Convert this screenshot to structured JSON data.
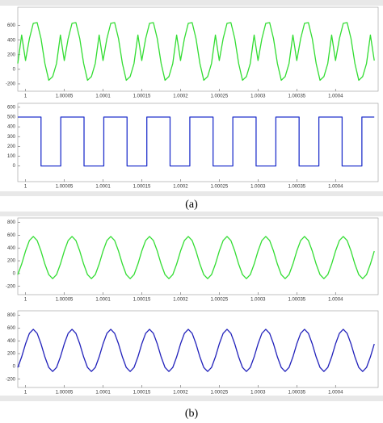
{
  "captions": [
    "(a)",
    "(b)"
  ],
  "chart_data": [
    {
      "type": "line",
      "color": "#33dd33",
      "xlim": [
        0.99999,
        1.000455
      ],
      "ylim": [
        -300,
        850
      ],
      "yticks": [
        -200,
        0,
        200,
        400,
        600
      ],
      "xticks": [
        1,
        1.00005,
        1.0001,
        1.00015,
        1.0002,
        1.00025,
        1.0003,
        1.00035,
        1.0004
      ],
      "x": [
        0.99999,
        0.999995,
        1,
        1.000005,
        1.00001,
        1.000015,
        1.00002,
        1.000025,
        1.00003,
        1.000035,
        1.00004,
        1.000045,
        1.00005,
        1.000055,
        1.00006,
        1.000065,
        1.00007,
        1.000075,
        1.00008,
        1.000085,
        1.00009,
        1.000095,
        1.0001,
        1.000105,
        1.00011,
        1.000115,
        1.00012,
        1.000125,
        1.00013,
        1.000135,
        1.00014,
        1.000145,
        1.00015,
        1.000155,
        1.00016,
        1.000165,
        1.00017,
        1.000175,
        1.00018,
        1.000185,
        1.00019,
        1.000195,
        1.0002,
        1.000205,
        1.00021,
        1.000215,
        1.00022,
        1.000225,
        1.00023,
        1.000235,
        1.00024,
        1.000245,
        1.00025,
        1.000255,
        1.00026,
        1.000265,
        1.00027,
        1.000275,
        1.00028,
        1.000285,
        1.00029,
        1.000295,
        1.0003,
        1.000305,
        1.00031,
        1.000315,
        1.00032,
        1.000325,
        1.00033,
        1.000335,
        1.00034,
        1.000345,
        1.00035,
        1.000355,
        1.00036,
        1.000365,
        1.00037,
        1.000375,
        1.00038,
        1.000385,
        1.00039,
        1.000395,
        1.0004,
        1.000405,
        1.00041,
        1.000415,
        1.00042,
        1.000425,
        1.00043,
        1.000435,
        1.00044,
        1.000445,
        1.00045
      ],
      "values": [
        80,
        470,
        120,
        420,
        630,
        640,
        420,
        80,
        -150,
        -100,
        80,
        470,
        120,
        420,
        630,
        640,
        420,
        80,
        -150,
        -100,
        80,
        470,
        120,
        420,
        630,
        640,
        420,
        80,
        -150,
        -100,
        80,
        470,
        120,
        420,
        630,
        640,
        420,
        80,
        -150,
        -100,
        80,
        470,
        120,
        420,
        630,
        640,
        420,
        80,
        -150,
        -100,
        80,
        470,
        120,
        420,
        630,
        640,
        420,
        80,
        -150,
        -100,
        80,
        470,
        120,
        420,
        630,
        640,
        420,
        80,
        -150,
        -100,
        80,
        470,
        120,
        420,
        630,
        640,
        420,
        80,
        -150,
        -100,
        80,
        470,
        120,
        420,
        630,
        640,
        420,
        80,
        -150,
        -100,
        80,
        470,
        120
      ]
    },
    {
      "type": "line",
      "color": "#2233cc",
      "xlim": [
        0.99999,
        1.000455
      ],
      "ylim": [
        -160,
        640
      ],
      "yticks": [
        0,
        100,
        200,
        300,
        400,
        500,
        600
      ],
      "xticks": [
        1,
        1.00005,
        1.0001,
        1.00015,
        1.0002,
        1.00025,
        1.0003,
        1.00035,
        1.0004
      ],
      "x": [
        0.99999,
        1.00002,
        1.00002,
        1.0000455,
        1.0000455,
        1.0000755,
        1.0000755,
        1.000101,
        1.000101,
        1.000131,
        1.000131,
        1.0001565,
        1.0001565,
        1.0001865,
        1.0001865,
        1.000212,
        1.000212,
        1.000242,
        1.000242,
        1.0002675,
        1.0002675,
        1.0002975,
        1.0002975,
        1.000323,
        1.000323,
        1.000353,
        1.000353,
        1.0003785,
        1.0003785,
        1.0004085,
        1.0004085,
        1.000434,
        1.000434,
        1.00045
      ],
      "values": [
        500,
        500,
        0,
        0,
        500,
        500,
        0,
        0,
        500,
        500,
        0,
        0,
        500,
        500,
        0,
        0,
        500,
        500,
        0,
        0,
        500,
        500,
        0,
        0,
        500,
        500,
        0,
        0,
        500,
        500,
        0,
        0,
        500,
        500
      ]
    },
    {
      "type": "line",
      "color": "#33dd33",
      "xlim": [
        0.99999,
        1.000455
      ],
      "ylim": [
        -330,
        870
      ],
      "yticks": [
        -200,
        0,
        200,
        400,
        600,
        800
      ],
      "xticks": [
        1,
        1.00005,
        1.0001,
        1.00015,
        1.0002,
        1.00025,
        1.0003,
        1.00035,
        1.0004
      ],
      "x": [
        0.99999,
        0.999995,
        1,
        1.000005,
        1.00001,
        1.000015,
        1.00002,
        1.000025,
        1.00003,
        1.000035,
        1.00004,
        1.000045,
        1.00005,
        1.000055,
        1.00006,
        1.000065,
        1.00007,
        1.000075,
        1.00008,
        1.000085,
        1.00009,
        1.000095,
        1.0001,
        1.000105,
        1.00011,
        1.000115,
        1.00012,
        1.000125,
        1.00013,
        1.000135,
        1.00014,
        1.000145,
        1.00015,
        1.000155,
        1.00016,
        1.000165,
        1.00017,
        1.000175,
        1.00018,
        1.000185,
        1.00019,
        1.000195,
        1.0002,
        1.000205,
        1.00021,
        1.000215,
        1.00022,
        1.000225,
        1.00023,
        1.000235,
        1.00024,
        1.000245,
        1.00025,
        1.000255,
        1.00026,
        1.000265,
        1.00027,
        1.000275,
        1.00028,
        1.000285,
        1.00029,
        1.000295,
        1.0003,
        1.000305,
        1.00031,
        1.000315,
        1.00032,
        1.000325,
        1.00033,
        1.000335,
        1.00034,
        1.000345,
        1.00035,
        1.000355,
        1.00036,
        1.000365,
        1.00037,
        1.000375,
        1.00038,
        1.000385,
        1.00039,
        1.000395,
        1.0004,
        1.000405,
        1.00041,
        1.000415,
        1.00042,
        1.000425,
        1.00043,
        1.000435,
        1.00044,
        1.000445,
        1.00045
      ],
      "values": [
        -17,
        148,
        352,
        517,
        580,
        517,
        352,
        148,
        -17,
        -80,
        -17,
        148,
        352,
        517,
        580,
        517,
        352,
        148,
        -17,
        -80,
        -17,
        148,
        352,
        517,
        580,
        517,
        352,
        148,
        -17,
        -80,
        -17,
        148,
        352,
        517,
        580,
        517,
        352,
        148,
        -17,
        -80,
        -17,
        148,
        352,
        517,
        580,
        517,
        352,
        148,
        -17,
        -80,
        -17,
        148,
        352,
        517,
        580,
        517,
        352,
        148,
        -17,
        -80,
        -17,
        148,
        352,
        517,
        580,
        517,
        352,
        148,
        -17,
        -80,
        -17,
        148,
        352,
        517,
        580,
        517,
        352,
        148,
        -17,
        -80,
        -17,
        148,
        352,
        517,
        580,
        517,
        352,
        148,
        -17,
        -80,
        -17,
        148,
        352
      ]
    },
    {
      "type": "line",
      "color": "#2222bb",
      "xlim": [
        0.99999,
        1.000455
      ],
      "ylim": [
        -330,
        870
      ],
      "yticks": [
        -200,
        0,
        200,
        400,
        600,
        800
      ],
      "xticks": [
        1,
        1.00005,
        1.0001,
        1.00015,
        1.0002,
        1.00025,
        1.0003,
        1.00035,
        1.0004
      ],
      "x": [
        0.99999,
        0.999995,
        1,
        1.000005,
        1.00001,
        1.000015,
        1.00002,
        1.000025,
        1.00003,
        1.000035,
        1.00004,
        1.000045,
        1.00005,
        1.000055,
        1.00006,
        1.000065,
        1.00007,
        1.000075,
        1.00008,
        1.000085,
        1.00009,
        1.000095,
        1.0001,
        1.000105,
        1.00011,
        1.000115,
        1.00012,
        1.000125,
        1.00013,
        1.000135,
        1.00014,
        1.000145,
        1.00015,
        1.000155,
        1.00016,
        1.000165,
        1.00017,
        1.000175,
        1.00018,
        1.000185,
        1.00019,
        1.000195,
        1.0002,
        1.000205,
        1.00021,
        1.000215,
        1.00022,
        1.000225,
        1.00023,
        1.000235,
        1.00024,
        1.000245,
        1.00025,
        1.000255,
        1.00026,
        1.000265,
        1.00027,
        1.000275,
        1.00028,
        1.000285,
        1.00029,
        1.000295,
        1.0003,
        1.000305,
        1.00031,
        1.000315,
        1.00032,
        1.000325,
        1.00033,
        1.000335,
        1.00034,
        1.000345,
        1.00035,
        1.000355,
        1.00036,
        1.000365,
        1.00037,
        1.000375,
        1.00038,
        1.000385,
        1.00039,
        1.000395,
        1.0004,
        1.000405,
        1.00041,
        1.000415,
        1.00042,
        1.000425,
        1.00043,
        1.000435,
        1.00044,
        1.000445,
        1.00045
      ],
      "values": [
        -17,
        148,
        352,
        517,
        580,
        517,
        352,
        148,
        -17,
        -80,
        -17,
        148,
        352,
        517,
        580,
        517,
        352,
        148,
        -17,
        -80,
        -17,
        148,
        352,
        517,
        580,
        517,
        352,
        148,
        -17,
        -80,
        -17,
        148,
        352,
        517,
        580,
        517,
        352,
        148,
        -17,
        -80,
        -17,
        148,
        352,
        517,
        580,
        517,
        352,
        148,
        -17,
        -80,
        -17,
        148,
        352,
        517,
        580,
        517,
        352,
        148,
        -17,
        -80,
        -17,
        148,
        352,
        517,
        580,
        517,
        352,
        148,
        -17,
        -80,
        -17,
        148,
        352,
        517,
        580,
        517,
        352,
        148,
        -17,
        -80,
        -17,
        148,
        352,
        517,
        580,
        517,
        352,
        148,
        -17,
        -80,
        -17,
        148,
        352
      ]
    }
  ]
}
